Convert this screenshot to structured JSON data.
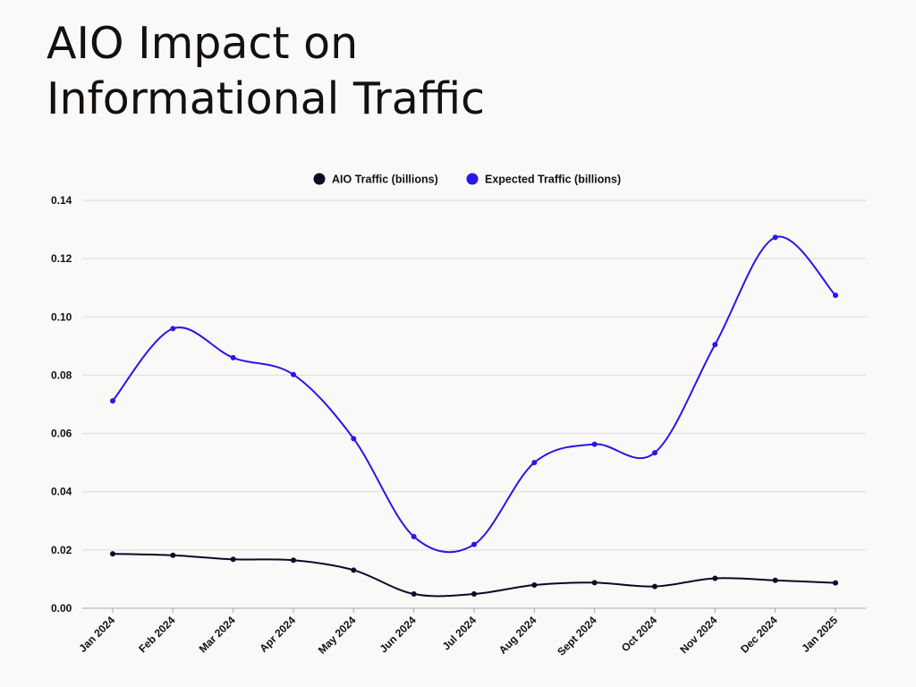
{
  "title": {
    "line1": "AIO Impact on",
    "line2": "Informational Traffic"
  },
  "colors": {
    "aio": "#0b0a26",
    "expected": "#2a15e8",
    "grid": "#dedcda",
    "axis": "#aaaaaa"
  },
  "chart_data": {
    "type": "line",
    "title": "AIO Impact on Informational Traffic",
    "xlabel": "",
    "ylabel": "",
    "ylim": [
      0,
      0.14
    ],
    "yticks": [
      "0.00",
      "0.02",
      "0.04",
      "0.06",
      "0.08",
      "0.10",
      "0.12",
      "0.14"
    ],
    "grid": true,
    "legend_position": "top-center",
    "categories": [
      "Jan 2024",
      "Feb 2024",
      "Mar 2024",
      "Apr 2024",
      "May 2024",
      "Jun 2024",
      "Jul 2024",
      "Aug 2024",
      "Sept 2024",
      "Oct 2024",
      "Nov 2024",
      "Dec 2024",
      "Jan 2025"
    ],
    "series": [
      {
        "name": "AIO Traffic (billions)",
        "color_key": "aio",
        "values": [
          0.0187,
          0.0182,
          0.0168,
          0.0165,
          0.0131,
          0.0049,
          0.0049,
          0.008,
          0.0088,
          0.0075,
          0.0103,
          0.0096,
          0.0087
        ]
      },
      {
        "name": "Expected Traffic (billions)",
        "color_key": "expected",
        "values": [
          0.0712,
          0.096,
          0.086,
          0.0802,
          0.0582,
          0.0246,
          0.0219,
          0.05,
          0.0563,
          0.0534,
          0.0905,
          0.1273,
          0.1074
        ]
      }
    ]
  }
}
